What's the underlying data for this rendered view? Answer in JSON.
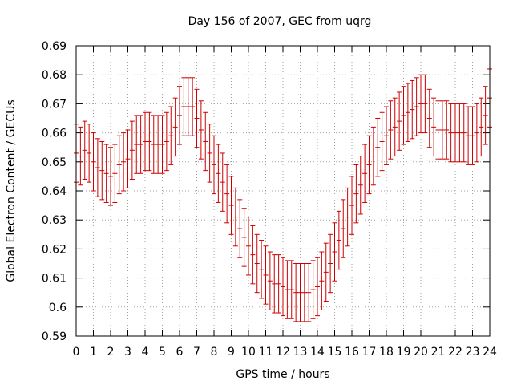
{
  "chart_data": {
    "type": "scatter",
    "title": "Day 156 of 2007, GEC from uqrg",
    "xlabel": "GPS time / hours",
    "ylabel": "Global Electron Content / GECUs",
    "xlim": [
      0,
      24
    ],
    "ylim": [
      0.59,
      0.69
    ],
    "xticks": [
      0,
      1,
      2,
      3,
      4,
      5,
      6,
      7,
      8,
      9,
      10,
      11,
      12,
      13,
      14,
      15,
      16,
      17,
      18,
      19,
      20,
      21,
      22,
      23,
      24
    ],
    "yticks": [
      0.59,
      0.6,
      0.61,
      0.62,
      0.63,
      0.64,
      0.65,
      0.66,
      0.67,
      0.68,
      0.69
    ],
    "xtick_labels": [
      "0",
      "1",
      "2",
      "3",
      "4",
      "5",
      "6",
      "7",
      "8",
      "9",
      "10",
      "11",
      "12",
      "13",
      "14",
      "15",
      "16",
      "17",
      "18",
      "19",
      "20",
      "21",
      "22",
      "23",
      "24"
    ],
    "ytick_labels": [
      "0.59",
      "0.6",
      "0.61",
      "0.62",
      "0.63",
      "0.64",
      "0.65",
      "0.66",
      "0.67",
      "0.68",
      "0.69"
    ],
    "grid": true,
    "error_half_width": 0.01,
    "color": "#cc0000",
    "series": [
      {
        "x": [
          0,
          0.25,
          0.5,
          0.75,
          1,
          1.25,
          1.5,
          1.75,
          2,
          2.25,
          2.5,
          2.75,
          3,
          3.25,
          3.5,
          3.75,
          4,
          4.25,
          4.5,
          4.75,
          5,
          5.25,
          5.5,
          5.75,
          6,
          6.25,
          6.5,
          6.75,
          7,
          7.25,
          7.5,
          7.75,
          8,
          8.25,
          8.5,
          8.75,
          9,
          9.25,
          9.5,
          9.75,
          10,
          10.25,
          10.5,
          10.75,
          11,
          11.25,
          11.5,
          11.75,
          12,
          12.25,
          12.5,
          12.75,
          13,
          13.25,
          13.5,
          13.75,
          14,
          14.25,
          14.5,
          14.75,
          15,
          15.25,
          15.5,
          15.75,
          16,
          16.25,
          16.5,
          16.75,
          17,
          17.25,
          17.5,
          17.75,
          18,
          18.25,
          18.5,
          18.75,
          19,
          19.25,
          19.5,
          19.75,
          20,
          20.25,
          20.5,
          20.75,
          21,
          21.25,
          21.5,
          21.75,
          22,
          22.25,
          22.5,
          22.75,
          23,
          23.25,
          23.5,
          23.75,
          24
        ],
        "y": [
          0.653,
          0.652,
          0.654,
          0.653,
          0.65,
          0.648,
          0.647,
          0.646,
          0.645,
          0.646,
          0.649,
          0.65,
          0.651,
          0.654,
          0.656,
          0.656,
          0.657,
          0.657,
          0.656,
          0.656,
          0.656,
          0.657,
          0.659,
          0.662,
          0.666,
          0.669,
          0.669,
          0.669,
          0.665,
          0.661,
          0.657,
          0.653,
          0.649,
          0.646,
          0.643,
          0.639,
          0.635,
          0.631,
          0.627,
          0.624,
          0.621,
          0.618,
          0.615,
          0.613,
          0.611,
          0.609,
          0.608,
          0.608,
          0.607,
          0.606,
          0.606,
          0.605,
          0.605,
          0.605,
          0.605,
          0.606,
          0.607,
          0.609,
          0.612,
          0.615,
          0.619,
          0.623,
          0.627,
          0.631,
          0.635,
          0.639,
          0.642,
          0.646,
          0.649,
          0.652,
          0.655,
          0.657,
          0.659,
          0.661,
          0.662,
          0.664,
          0.666,
          0.667,
          0.668,
          0.669,
          0.67,
          0.67,
          0.665,
          0.662,
          0.661,
          0.661,
          0.661,
          0.66,
          0.66,
          0.66,
          0.66,
          0.659,
          0.659,
          0.66,
          0.662,
          0.666,
          0.672
        ]
      }
    ]
  }
}
